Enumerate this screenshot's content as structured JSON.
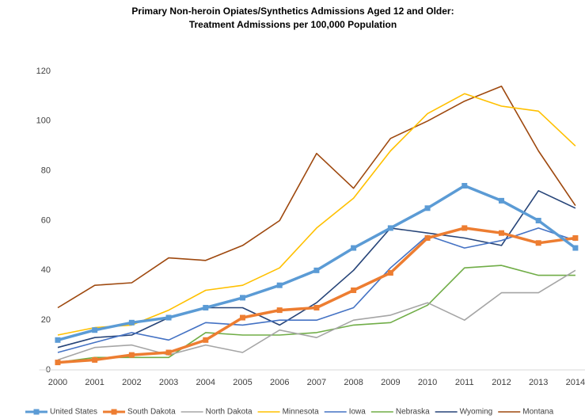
{
  "chart_data": {
    "type": "line",
    "title": [
      "Primary Non-heroin Opiates/Synthetics Admissions Aged 12 and Older:",
      "Treatment Admissions per 100,000 Population"
    ],
    "categories": [
      "2000",
      "2001",
      "2002",
      "2003",
      "2004",
      "2005",
      "2006",
      "2007",
      "2008",
      "2009",
      "2010",
      "2011",
      "2012",
      "2013",
      "2014"
    ],
    "ylim": [
      0,
      120
    ],
    "yticks": [
      0,
      20,
      40,
      60,
      80,
      100,
      120
    ],
    "grid": false,
    "legend": "bottom",
    "series": [
      {
        "name": "United States",
        "color": "#5b9bd5",
        "marker": "square",
        "values": [
          12,
          16,
          19,
          21,
          25,
          29,
          34,
          40,
          49,
          57,
          65,
          74,
          68,
          60,
          49
        ]
      },
      {
        "name": "South Dakota",
        "color": "#ed7d31",
        "marker": "square",
        "values": [
          3,
          4,
          6,
          7,
          12,
          21,
          24,
          25,
          32,
          39,
          53,
          57,
          55,
          51,
          53
        ]
      },
      {
        "name": "North Dakota",
        "color": "#a5a5a5",
        "values": [
          4,
          9,
          10,
          6,
          10,
          7,
          16,
          13,
          20,
          22,
          27,
          20,
          31,
          31,
          40
        ]
      },
      {
        "name": "Minnesota",
        "color": "#ffc000",
        "values": [
          14,
          17,
          18,
          24,
          32,
          34,
          41,
          57,
          69,
          88,
          103,
          111,
          106,
          104,
          90
        ]
      },
      {
        "name": "Iowa",
        "color": "#4472c4",
        "values": [
          7,
          11,
          15,
          12,
          19,
          18,
          20,
          20,
          25,
          41,
          54,
          49,
          52,
          57,
          52
        ]
      },
      {
        "name": "Nebraska",
        "color": "#70ad47",
        "values": [
          3,
          5,
          5,
          5,
          15,
          14,
          14,
          15,
          18,
          19,
          26,
          41,
          42,
          38,
          38
        ]
      },
      {
        "name": "Wyoming",
        "color": "#264478",
        "values": [
          9,
          13,
          14,
          21,
          25,
          25,
          18,
          27,
          40,
          57,
          55,
          53,
          50,
          72,
          65
        ]
      },
      {
        "name": "Montana",
        "color": "#9e480e",
        "values": [
          25,
          34,
          35,
          45,
          44,
          50,
          60,
          87,
          73,
          93,
          100,
          108,
          114,
          88,
          66
        ]
      }
    ]
  }
}
